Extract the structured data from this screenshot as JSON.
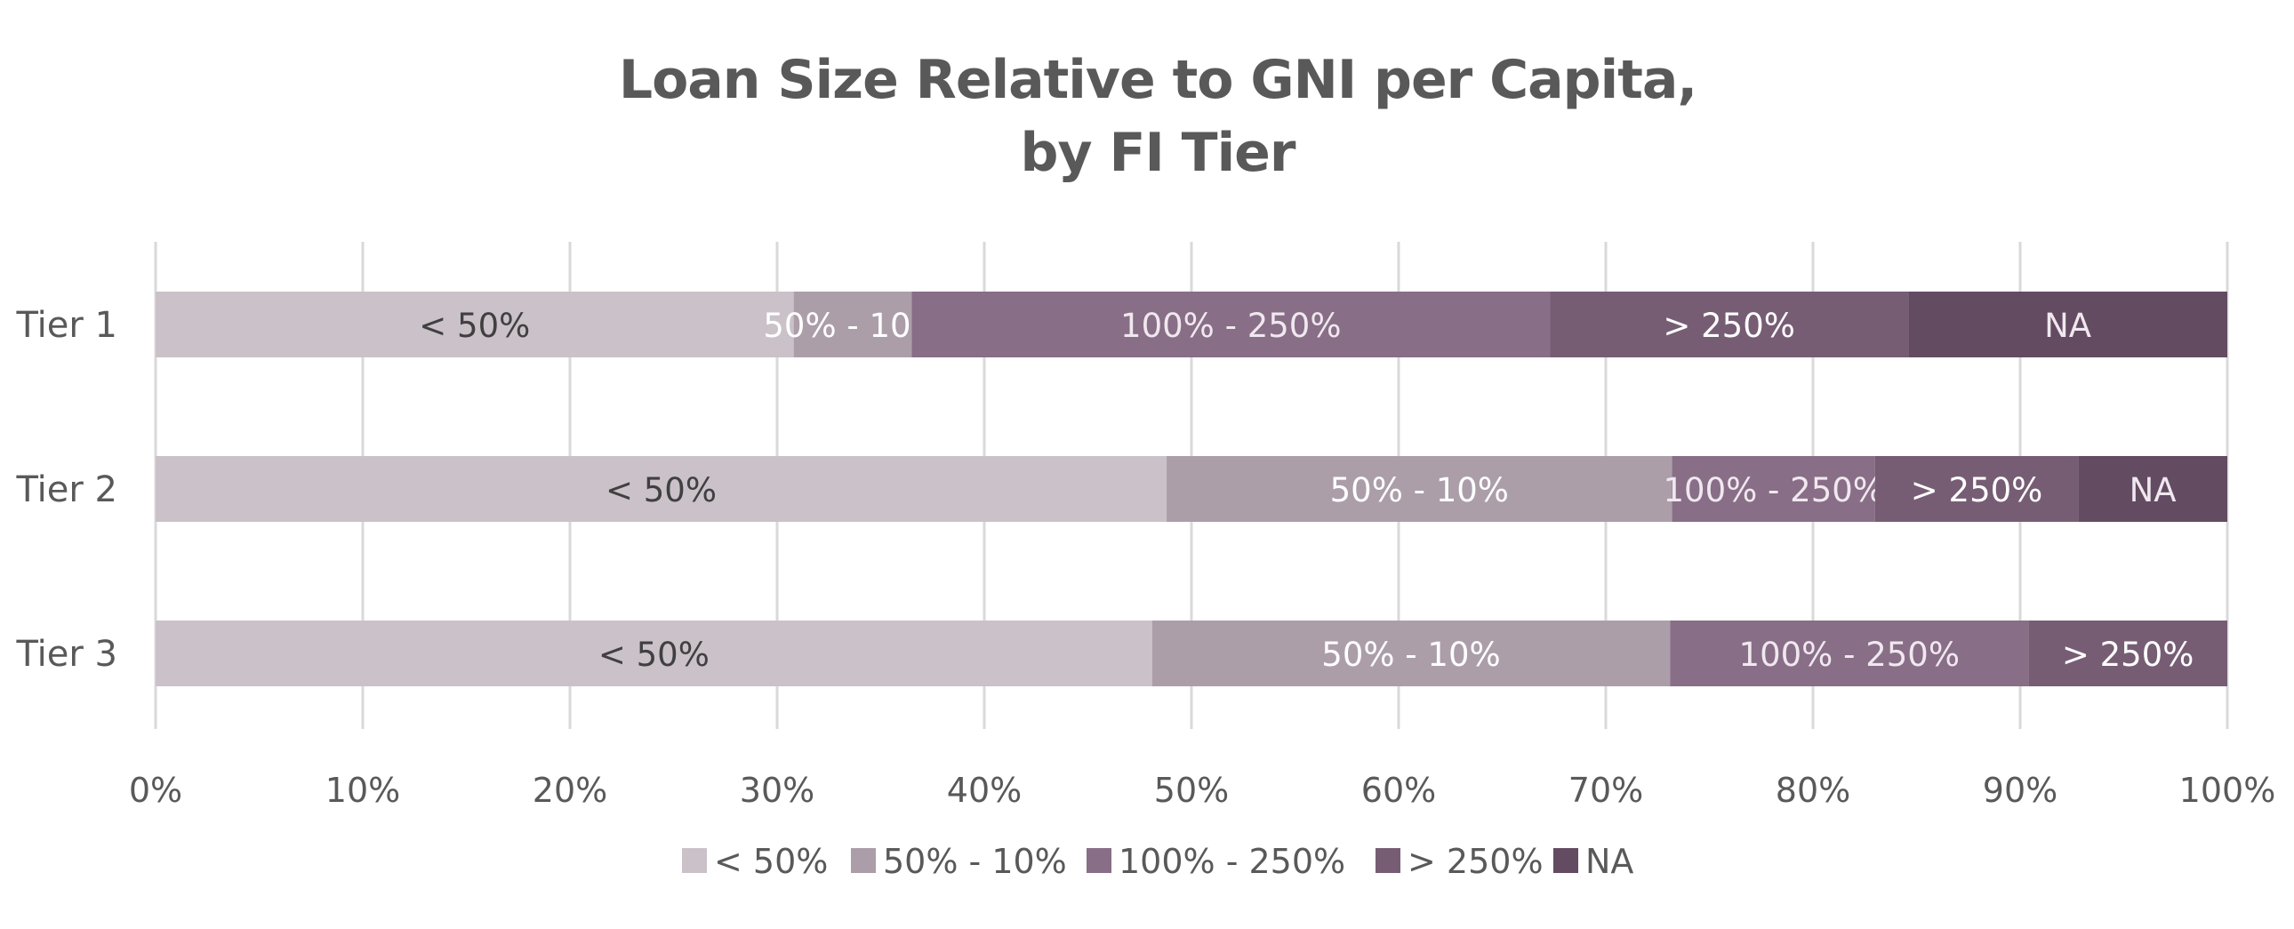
{
  "chart_data": {
    "type": "bar",
    "orientation": "horizontal",
    "stacked": "percent",
    "title_lines": [
      "Loan Size Relative to GNI per Capita,",
      "by FI Tier"
    ],
    "categories": [
      "Tier 1",
      "Tier 2",
      "Tier 3"
    ],
    "series": [
      {
        "name": "< 50%",
        "values": [
          30.8,
          48.8,
          48.1
        ]
      },
      {
        "name": "50% - 10%",
        "values": [
          5.7,
          24.4,
          25.0
        ]
      },
      {
        "name": "100% - 250%",
        "values": [
          30.8,
          9.8,
          17.3
        ]
      },
      {
        "name": "> 250%",
        "values": [
          17.3,
          9.8,
          9.6
        ]
      },
      {
        "name": "NA",
        "values": [
          15.4,
          7.2,
          0
        ]
      }
    ],
    "xlim": [
      0,
      100
    ],
    "x_ticks": [
      "0%",
      "10%",
      "20%",
      "30%",
      "40%",
      "50%",
      "60%",
      "70%",
      "80%",
      "90%",
      "100%"
    ],
    "grid": "vertical",
    "legend_position": "bottom"
  },
  "colors": {
    "series": [
      "#cac1c9",
      "#ab9ea9",
      "#886e87",
      "#765d74",
      "#634b62"
    ],
    "segment_label": [
      "#404040",
      "#ffffff",
      "#f0e8ef",
      "#ffffff",
      "#f0e8ef"
    ],
    "grid": "#d9d9d9",
    "text": "#595959"
  }
}
